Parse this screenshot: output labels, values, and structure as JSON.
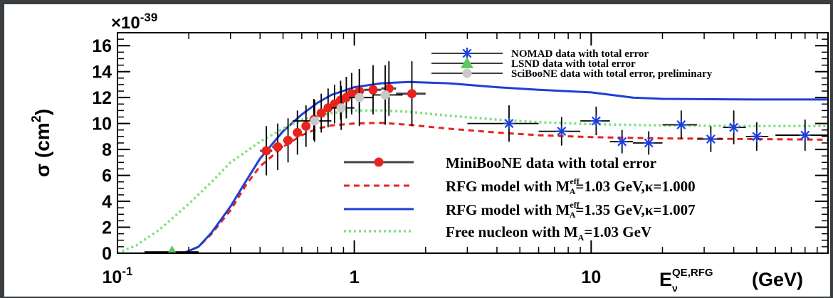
{
  "chart_data": {
    "type": "scatter",
    "title": "",
    "xlabel_main": "E",
    "xlabel_sub": "ν",
    "xlabel_sup": "QE,RFG",
    "xlabel_unit": "(GeV)",
    "ylabel_main": "σ (cm",
    "ylabel_sup": "2",
    "ylabel_close": ")",
    "y_multiplier_base": "×10",
    "y_multiplier_exp": "-39",
    "x_scale": "log",
    "xlim": [
      0.1,
      100
    ],
    "ylim": [
      0,
      17
    ],
    "x_ticks": [
      {
        "value": 0.1,
        "base": "10",
        "exp": "-1"
      },
      {
        "value": 1,
        "base": "1",
        "exp": ""
      },
      {
        "value": 10,
        "base": "10",
        "exp": ""
      }
    ],
    "y_ticks": [
      0,
      2,
      4,
      6,
      8,
      10,
      12,
      14,
      16
    ],
    "legend_top": [
      {
        "label": "NOMAD data with total error",
        "series": "nomad"
      },
      {
        "label": "LSND data with total error",
        "series": "lsnd"
      },
      {
        "label": "SciBooNE data with total error, preliminary",
        "series": "sciboone"
      }
    ],
    "legend_bottom": [
      {
        "label": "MiniBooNE data with total error",
        "series": "miniboone"
      },
      {
        "label": "RFG model with M",
        "sub": "A",
        "sup": "eff",
        "rest": "=1.03 GeV,κ=1.000",
        "series": "rfg103"
      },
      {
        "label": "RFG model with M",
        "sub": "A",
        "sup": "eff",
        "rest": "=1.35 GeV,κ=1.007",
        "series": "rfg135"
      },
      {
        "label": "Free nucleon with M",
        "sub": "A",
        "sup": "",
        "rest": "=1.03 GeV",
        "series": "free"
      }
    ],
    "series": [
      {
        "id": "miniboone",
        "kind": "points",
        "color": "#e8231e",
        "marker": "circle",
        "points": [
          {
            "x": 0.425,
            "y": 7.9,
            "err": 1.9,
            "xerr": [
              0.4,
              0.45
            ]
          },
          {
            "x": 0.475,
            "y": 8.2,
            "err": 1.8,
            "xerr": [
              0.45,
              0.5
            ]
          },
          {
            "x": 0.525,
            "y": 8.7,
            "err": 1.7,
            "xerr": [
              0.5,
              0.55
            ]
          },
          {
            "x": 0.575,
            "y": 9.3,
            "err": 1.7,
            "xerr": [
              0.55,
              0.6
            ]
          },
          {
            "x": 0.625,
            "y": 9.8,
            "err": 1.6,
            "xerr": [
              0.6,
              0.65
            ]
          },
          {
            "x": 0.675,
            "y": 10.3,
            "err": 1.6,
            "xerr": [
              0.65,
              0.7
            ]
          },
          {
            "x": 0.725,
            "y": 10.8,
            "err": 1.5,
            "xerr": [
              0.7,
              0.75
            ]
          },
          {
            "x": 0.775,
            "y": 11.2,
            "err": 1.5,
            "xerr": [
              0.75,
              0.8
            ]
          },
          {
            "x": 0.825,
            "y": 11.5,
            "err": 1.5,
            "xerr": [
              0.8,
              0.85
            ]
          },
          {
            "x": 0.875,
            "y": 11.8,
            "err": 1.5,
            "xerr": [
              0.85,
              0.9
            ]
          },
          {
            "x": 0.925,
            "y": 12.0,
            "err": 1.6,
            "xerr": [
              0.9,
              0.95
            ]
          },
          {
            "x": 0.975,
            "y": 12.3,
            "err": 1.6,
            "xerr": [
              0.95,
              1.0
            ]
          },
          {
            "x": 1.05,
            "y": 12.5,
            "err": 1.7,
            "xerr": [
              1.0,
              1.1
            ]
          },
          {
            "x": 1.2,
            "y": 12.6,
            "err": 1.9,
            "xerr": [
              1.1,
              1.3
            ]
          },
          {
            "x": 1.4,
            "y": 12.7,
            "err": 2.1,
            "xerr": [
              1.3,
              1.5
            ]
          },
          {
            "x": 1.75,
            "y": 12.3,
            "err": 2.5,
            "xerr": [
              1.5,
              2.0
            ]
          }
        ]
      },
      {
        "id": "sciboone",
        "kind": "points",
        "color": "#c8c8c8",
        "marker": "circle",
        "points": [
          {
            "x": 0.68,
            "y": 10.2,
            "err": 1.6,
            "xerr": [
              0.55,
              0.8
            ]
          },
          {
            "x": 0.88,
            "y": 11.2,
            "err": 1.7,
            "xerr": [
              0.8,
              1.0
            ]
          },
          {
            "x": 1.05,
            "y": 12.0,
            "err": 2.2,
            "xerr": [
              0.95,
              1.2
            ]
          },
          {
            "x": 1.35,
            "y": 12.2,
            "err": 2.3,
            "xerr": [
              1.2,
              1.6
            ]
          }
        ]
      },
      {
        "id": "lsnd",
        "kind": "points",
        "color": "#5ec85e",
        "marker": "triangle",
        "points": [
          {
            "x": 0.17,
            "y": 0.1,
            "err": 0.35,
            "xerr": [
              0.13,
              0.22
            ]
          }
        ]
      },
      {
        "id": "nomad",
        "kind": "points",
        "color": "#1f3fd6",
        "marker": "star",
        "points": [
          {
            "x": 4.5,
            "y": 10.0,
            "err": 1.4,
            "xerr": [
              3.0,
              6.0
            ]
          },
          {
            "x": 7.5,
            "y": 9.4,
            "err": 1.1,
            "xerr": [
              6.0,
              9.0
            ]
          },
          {
            "x": 10.5,
            "y": 10.2,
            "err": 1.1,
            "xerr": [
              9.0,
              12.0
            ]
          },
          {
            "x": 13.5,
            "y": 8.6,
            "err": 0.9,
            "xerr": [
              12.0,
              15.0
            ]
          },
          {
            "x": 17.5,
            "y": 8.5,
            "err": 0.9,
            "xerr": [
              15.0,
              20.0
            ]
          },
          {
            "x": 24.0,
            "y": 9.9,
            "err": 1.1,
            "xerr": [
              20.0,
              28.0
            ]
          },
          {
            "x": 32.0,
            "y": 8.8,
            "err": 1.0,
            "xerr": [
              28.0,
              36.0
            ]
          },
          {
            "x": 40.0,
            "y": 9.7,
            "err": 1.3,
            "xerr": [
              36.0,
              45.0
            ]
          },
          {
            "x": 50.0,
            "y": 9.0,
            "err": 1.1,
            "xerr": [
              45.0,
              56.0
            ]
          },
          {
            "x": 80.0,
            "y": 9.1,
            "err": 1.2,
            "xerr": [
              60.0,
              100.0
            ]
          }
        ]
      },
      {
        "id": "rfg103",
        "kind": "curve",
        "color": "#e8231e",
        "dash": "8,6",
        "points": [
          [
            0.19,
            0
          ],
          [
            0.22,
            0.5
          ],
          [
            0.25,
            1.5
          ],
          [
            0.3,
            3.3
          ],
          [
            0.35,
            5.3
          ],
          [
            0.4,
            6.7
          ],
          [
            0.5,
            8.2
          ],
          [
            0.6,
            9.1
          ],
          [
            0.7,
            9.6
          ],
          [
            0.8,
            9.85
          ],
          [
            1.0,
            10.0
          ],
          [
            1.3,
            10.05
          ],
          [
            1.7,
            9.9
          ],
          [
            2.5,
            9.6
          ],
          [
            4,
            9.3
          ],
          [
            6,
            9.1
          ],
          [
            10,
            8.95
          ],
          [
            20,
            8.85
          ],
          [
            50,
            8.8
          ],
          [
            100,
            8.75
          ]
        ]
      },
      {
        "id": "rfg135",
        "kind": "curve",
        "color": "#1f3fd6",
        "dash": "",
        "points": [
          [
            0.19,
            0
          ],
          [
            0.22,
            0.5
          ],
          [
            0.25,
            1.6
          ],
          [
            0.3,
            3.6
          ],
          [
            0.35,
            5.6
          ],
          [
            0.4,
            7.3
          ],
          [
            0.5,
            9.4
          ],
          [
            0.6,
            10.7
          ],
          [
            0.7,
            11.6
          ],
          [
            0.8,
            12.2
          ],
          [
            1.0,
            12.8
          ],
          [
            1.3,
            13.1
          ],
          [
            1.7,
            13.2
          ],
          [
            2.5,
            13.1
          ],
          [
            4,
            12.8
          ],
          [
            6,
            12.6
          ],
          [
            10,
            12.4
          ],
          [
            15,
            12.0
          ],
          [
            20,
            11.9
          ],
          [
            50,
            11.85
          ],
          [
            100,
            11.85
          ]
        ]
      },
      {
        "id": "free",
        "kind": "curve",
        "color": "#7fe07f",
        "dash": "3,4",
        "points": [
          [
            0.1,
            0
          ],
          [
            0.12,
            0.6
          ],
          [
            0.15,
            1.8
          ],
          [
            0.2,
            3.8
          ],
          [
            0.25,
            5.5
          ],
          [
            0.3,
            7.0
          ],
          [
            0.4,
            8.6
          ],
          [
            0.5,
            9.6
          ],
          [
            0.6,
            10.3
          ],
          [
            0.8,
            10.8
          ],
          [
            1.0,
            11.0
          ],
          [
            1.3,
            11.0
          ],
          [
            1.7,
            10.9
          ],
          [
            2.5,
            10.6
          ],
          [
            4,
            10.3
          ],
          [
            6,
            10.1
          ],
          [
            10,
            9.95
          ],
          [
            20,
            9.85
          ],
          [
            50,
            9.8
          ],
          [
            100,
            9.8
          ]
        ]
      }
    ]
  }
}
